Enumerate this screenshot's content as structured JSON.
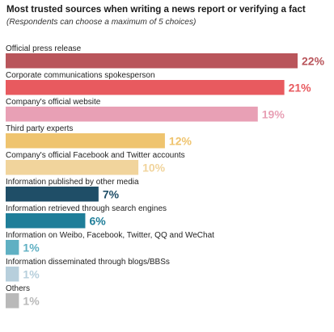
{
  "chart_data": {
    "type": "bar",
    "orientation": "horizontal",
    "title": "Most trusted sources when writing a news report or verifying a fact",
    "subtitle": "(Respondents can choose a maximum of 5 choices)",
    "categories": [
      "Official press release",
      "Corporate communications spokesperson",
      "Company's official website",
      "Third party experts",
      "Company's official Facebook and Twitter accounts",
      "Information published by other media",
      "Information retrieved through search engines",
      "Information on Weibo, Facebook, Twitter, QQ and WeChat",
      "Information disseminated through blogs/BBSs",
      "Others"
    ],
    "values": [
      22,
      21,
      19,
      12,
      10,
      7,
      6,
      1,
      1,
      1
    ],
    "value_labels": [
      "22%",
      "21%",
      "19%",
      "12%",
      "10%",
      "7%",
      "6%",
      "1%",
      "1%",
      "1%"
    ],
    "bar_colors": [
      "#b9555b",
      "#e85a5f",
      "#e8a0b5",
      "#efc46f",
      "#f1d49c",
      "#1f4e67",
      "#1f7e99",
      "#5fb0c3",
      "#b7cfdc",
      "#b9b9b9"
    ],
    "label_colors": [
      "#b9555b",
      "#e85a5f",
      "#e8a0b5",
      "#efc46f",
      "#f1d49c",
      "#1f4e67",
      "#1f7e99",
      "#5fb0c3",
      "#b7cfdc",
      "#b9b9b9"
    ],
    "xlim": [
      0,
      22
    ],
    "grid": false,
    "legend": "none"
  }
}
